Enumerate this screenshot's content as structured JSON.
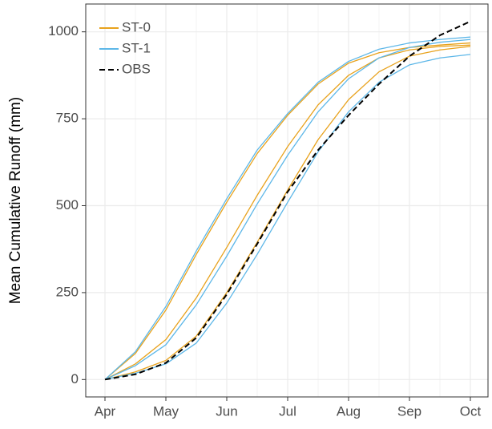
{
  "chart_data": {
    "type": "line",
    "y_label": "Mean Cumulative Runoff (mm)",
    "categories": [
      "Apr",
      null,
      "May",
      null,
      "Jun",
      null,
      "Jul",
      null,
      "Aug",
      null,
      "Sep",
      null,
      "Oct"
    ],
    "ylim": [
      -50,
      1080
    ],
    "yticks": [
      0,
      250,
      500,
      750,
      1000
    ],
    "grid": true,
    "legend": "top-left",
    "series": [
      {
        "name": "ST-0",
        "color": "#e8a21c",
        "linestyle": "solid",
        "values": [
          0,
          75,
          200,
          360,
          510,
          650,
          760,
          850,
          910,
          940,
          955,
          962,
          968
        ]
      },
      {
        "name": "ST-0",
        "color": "#e8a21c",
        "linestyle": "solid",
        "values": [
          0,
          45,
          115,
          235,
          380,
          530,
          670,
          790,
          875,
          925,
          948,
          958,
          962
        ]
      },
      {
        "name": "ST-0",
        "color": "#e8a21c",
        "linestyle": "solid",
        "values": [
          0,
          22,
          55,
          125,
          250,
          395,
          545,
          690,
          805,
          885,
          930,
          948,
          958
        ]
      },
      {
        "name": "ST-1",
        "color": "#5db7e8",
        "linestyle": "solid",
        "values": [
          0,
          80,
          210,
          370,
          520,
          660,
          765,
          855,
          915,
          950,
          968,
          978,
          985
        ]
      },
      {
        "name": "ST-1",
        "color": "#5db7e8",
        "linestyle": "solid",
        "values": [
          0,
          40,
          100,
          215,
          355,
          505,
          645,
          770,
          865,
          925,
          955,
          970,
          978
        ]
      },
      {
        "name": "ST-1",
        "color": "#5db7e8",
        "linestyle": "solid",
        "values": [
          0,
          18,
          45,
          105,
          220,
          360,
          510,
          655,
          770,
          855,
          905,
          925,
          935
        ]
      },
      {
        "name": "OBS",
        "color": "#000000",
        "linestyle": "dashed",
        "values": [
          0,
          15,
          48,
          120,
          245,
          390,
          540,
          660,
          760,
          850,
          930,
          990,
          1030
        ]
      }
    ]
  }
}
